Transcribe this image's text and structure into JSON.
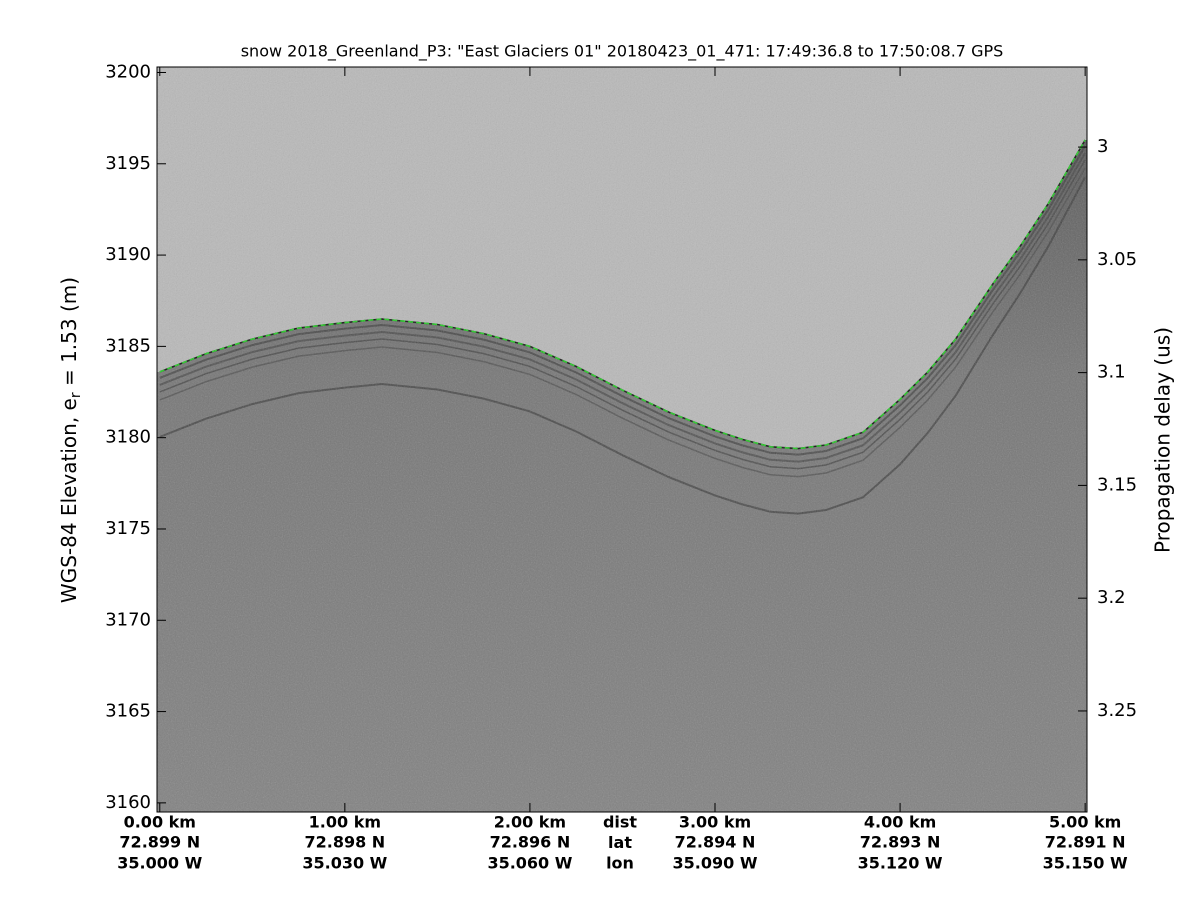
{
  "chart_data": {
    "type": "echogram",
    "title": "snow 2018_Greenland_P3: \"East Glaciers 01\"  20180423_01_471: 17:49:36.8 to 17:50:08.7 GPS",
    "ylabel": "WGS-84 Elevation, e",
    "ylabel_sub": "r",
    "ylabel_end": " = 1.53 (m)",
    "y2label": "Propagation delay (us)",
    "row_labels": [
      "dist",
      "lat",
      "lon"
    ],
    "xlim": [
      -0.015,
      5.01
    ],
    "xticks": [
      {
        "value": 0,
        "label": "0.00 km"
      },
      {
        "value": 1,
        "label": "1.00 km"
      },
      {
        "value": 2,
        "label": "2.00 km"
      },
      {
        "value": 3,
        "label": "3.00 km"
      },
      {
        "value": 4,
        "label": "4.00 km"
      },
      {
        "value": 5,
        "label": "5.00 km"
      }
    ],
    "xtick_lat": [
      "72.899 N",
      "72.898 N",
      "72.896 N",
      "72.894 N",
      "72.893 N",
      "72.891 N"
    ],
    "xtick_lon": [
      "35.000 W",
      "35.030 W",
      "35.060 W",
      "35.090 W",
      "35.120 W",
      "35.150 W"
    ],
    "ylim": [
      3159.5,
      3200.3
    ],
    "yticks": [
      3160,
      3165,
      3170,
      3175,
      3180,
      3185,
      3190,
      3195,
      3200
    ],
    "y2lim": [
      2.9645,
      3.2948
    ],
    "y2_reversed": true,
    "y2ticks": [
      3,
      3.05,
      3.1,
      3.15,
      3.2,
      3.25
    ],
    "series": [
      {
        "name": "Surface",
        "color": "#22cc22",
        "x": [
          0,
          0.25,
          0.5,
          0.75,
          1.0,
          1.2,
          1.5,
          1.75,
          2.0,
          2.25,
          2.5,
          2.75,
          3.0,
          3.15,
          3.3,
          3.45,
          3.6,
          3.8,
          4.0,
          4.15,
          4.3,
          4.5,
          4.65,
          4.8,
          5.0
        ],
        "values": [
          3183.6,
          3184.6,
          3185.4,
          3186.0,
          3186.3,
          3186.5,
          3186.2,
          3185.7,
          3185.0,
          3183.9,
          3182.6,
          3181.4,
          3180.4,
          3179.9,
          3179.5,
          3179.4,
          3179.6,
          3180.3,
          3182.1,
          3183.6,
          3185.4,
          3188.4,
          3190.5,
          3192.8,
          3196.3
        ]
      }
    ]
  }
}
